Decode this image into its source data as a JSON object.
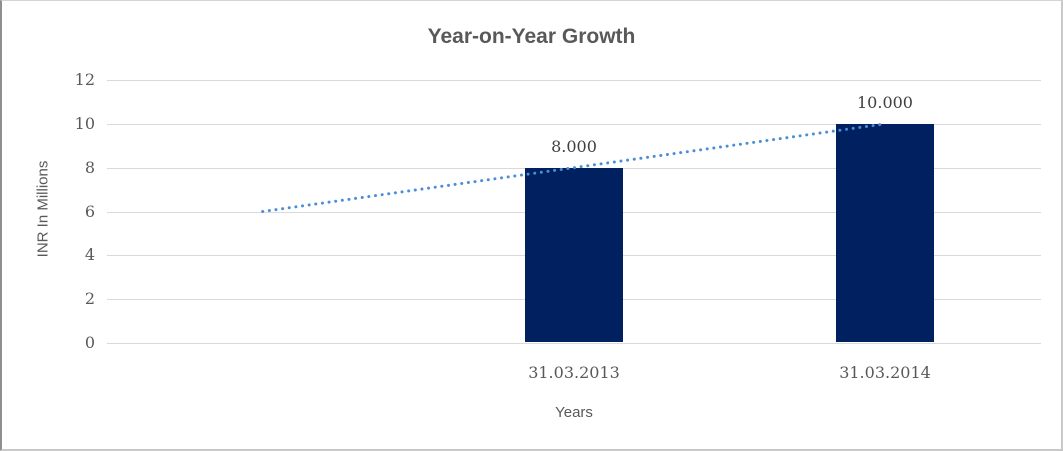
{
  "chart_data": {
    "type": "bar",
    "title": "Year-on-Year Growth",
    "xlabel": "Years",
    "ylabel": "INR In Millions",
    "categories": [
      "",
      "31.03.2013",
      "31.03.2014"
    ],
    "values": [
      null,
      8,
      10
    ],
    "data_labels": [
      "",
      "8.000",
      "10.000"
    ],
    "ylim": [
      0,
      12
    ],
    "yticks": [
      0,
      2,
      4,
      6,
      8,
      10,
      12
    ],
    "grid": true,
    "legend_position": "none",
    "bar_color": "#002060",
    "trendline": {
      "style": "dotted",
      "color": "#4a8ed5",
      "start": {
        "category_index": 0,
        "value": 6
      },
      "end": {
        "category_index": 2,
        "value": 10
      }
    }
  },
  "colors": {
    "title_text": "#595959",
    "axis_text": "#595959",
    "data_label_text": "#404040",
    "gridline": "#d9d9d9",
    "background": "#ffffff"
  }
}
